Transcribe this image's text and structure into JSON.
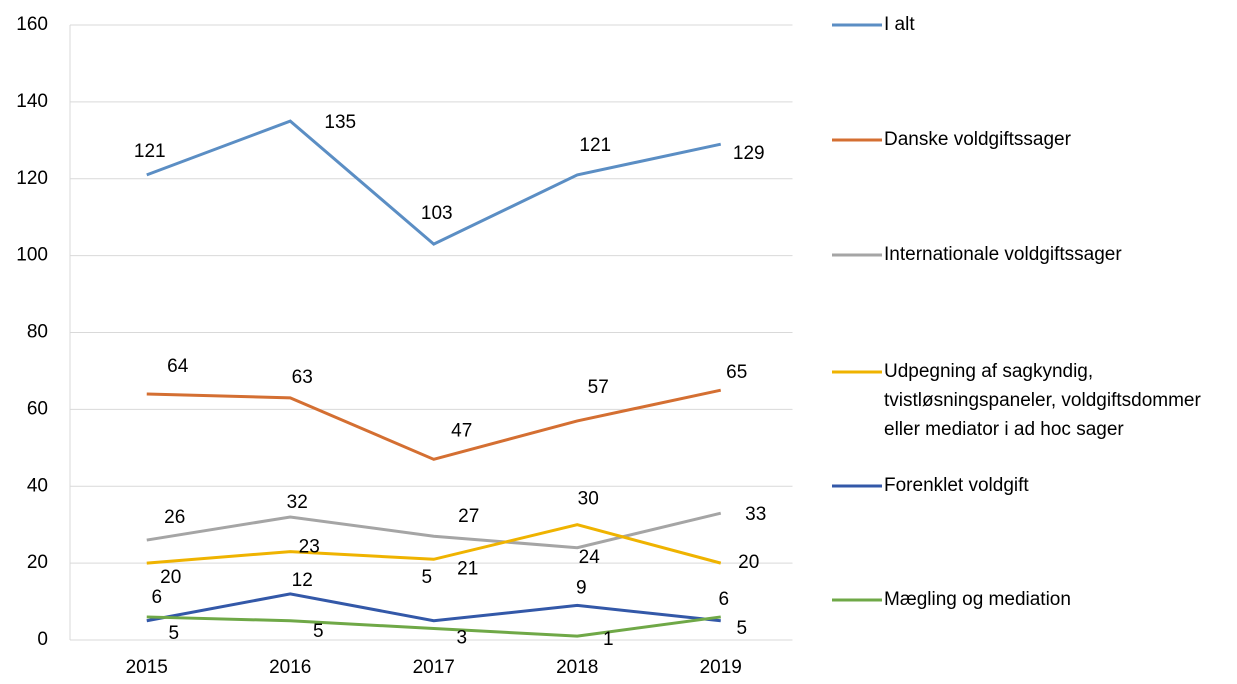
{
  "chart_data": {
    "type": "line",
    "categories": [
      "2015",
      "2016",
      "2017",
      "2018",
      "2019"
    ],
    "ylim": [
      0,
      160
    ],
    "yticks": [
      0,
      20,
      40,
      60,
      80,
      100,
      120,
      140,
      160
    ],
    "grid": true,
    "series": [
      {
        "name": "I alt",
        "color": "#5b8ec4",
        "values": [
          121,
          135,
          103,
          121,
          129
        ]
      },
      {
        "name": "Danske voldgiftssager",
        "color": "#d46f32",
        "values": [
          64,
          63,
          47,
          57,
          65
        ]
      },
      {
        "name": "Internationale voldgiftssager",
        "color": "#a5a5a5",
        "values": [
          26,
          32,
          27,
          24,
          33
        ]
      },
      {
        "name": "Udpegning af sagkyndig, tvistløsningspaneler, voldgiftsdommer eller mediator i ad hoc sager",
        "color": "#efb300",
        "values": [
          20,
          23,
          21,
          30,
          20
        ]
      },
      {
        "name": "Forenklet voldgift",
        "color": "#3358a8",
        "values": [
          5,
          12,
          5,
          9,
          5
        ]
      },
      {
        "name": "Mægling og mediation",
        "color": "#6fa847",
        "values": [
          6,
          5,
          3,
          1,
          6
        ]
      }
    ]
  }
}
